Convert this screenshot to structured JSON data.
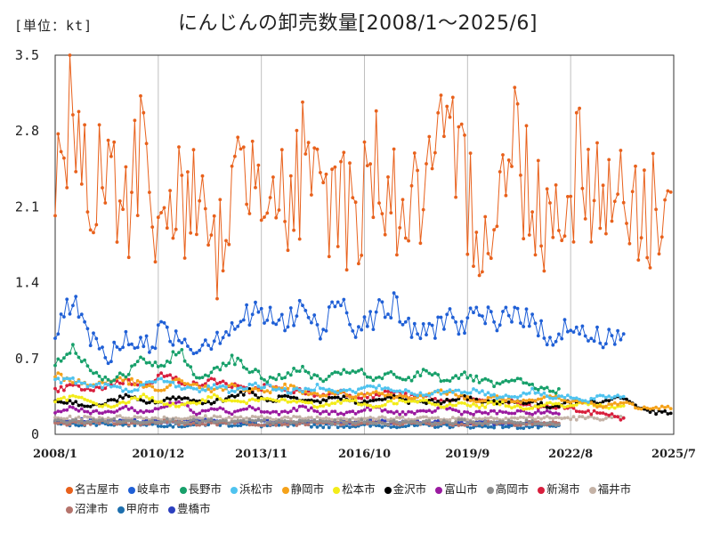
{
  "unit_label": "[単位：kt]",
  "colors": {
    "名古屋市": "#e8611c",
    "岐阜市": "#1f5fd6",
    "長野市": "#17a06a",
    "浜松市": "#4fc3ef",
    "静岡市": "#f5a21a",
    "松本市": "#f3ec1a",
    "金沢市": "#000000",
    "富山市": "#9a1aa0",
    "高岡市": "#8f8f8f",
    "新潟市": "#d81e3c",
    "福井市": "#c4b2a6",
    "沼津市": "#b5746c",
    "甲府市": "#1d6fae",
    "豊橋市": "#2b3fbf"
  },
  "chart_data": {
    "type": "line",
    "title": "にんじんの卸売数量[2008/1～2025/6]",
    "xlabel": "",
    "ylabel": "",
    "ylim": [
      0,
      3.5
    ],
    "yticks": [
      "0",
      "0.7",
      "1.4",
      "2.1",
      "2.8",
      "3.5"
    ],
    "xticks": [
      "2008/1",
      "2010/12",
      "2013/11",
      "2016/10",
      "2019/9",
      "2022/8",
      "2025/7"
    ],
    "grid": "vertical",
    "legend_position": "bottom",
    "x_range": [
      "2008/1",
      "2025/7"
    ],
    "series": [
      {
        "name": "名古屋市",
        "sample_every_months": 6,
        "end": "2025/6",
        "values": [
          2.6,
          2.8,
          2.1,
          2.4,
          2.0,
          2.9,
          1.7,
          2.3,
          2.1,
          1.6,
          2.2,
          2.5,
          2.7,
          2.0,
          2.4,
          2.1,
          2.3,
          1.9,
          2.6,
          2.2,
          2.0,
          2.3,
          2.5,
          2.4,
          1.9,
          2.1,
          2.7,
          2.2,
          2.0,
          2.3,
          2.6,
          2.1,
          2.4,
          1.9,
          2.2,
          2.0,
          1.8,
          1.6,
          2.2,
          1.5,
          1.3
        ]
      },
      {
        "name": "岐阜市",
        "sample_every_months": 6,
        "end": "2024/2",
        "values": [
          1.0,
          1.2,
          0.9,
          0.7,
          0.9,
          0.8,
          0.95,
          0.9,
          0.8,
          0.9,
          1.0,
          1.1,
          1.1,
          1.0,
          1.2,
          0.9,
          1.3,
          1.0,
          1.1,
          1.2,
          1.0,
          0.9,
          1.1,
          1.0,
          1.1,
          1.0,
          1.2,
          1.0,
          0.9,
          1.0,
          0.9,
          0.9,
          0.9
        ]
      },
      {
        "name": "長野市",
        "sample_every_months": 6,
        "end": "2022/4",
        "values": [
          0.65,
          0.8,
          0.6,
          0.5,
          0.55,
          0.7,
          0.6,
          0.8,
          0.5,
          0.6,
          0.7,
          0.6,
          0.5,
          0.55,
          0.6,
          0.5,
          0.55,
          0.6,
          0.5,
          0.55,
          0.5,
          0.6,
          0.5,
          0.55,
          0.5,
          0.45,
          0.5,
          0.45,
          0.4
        ]
      },
      {
        "name": "浜松市",
        "sample_every_months": 6,
        "end": "2024/2",
        "values": [
          0.5,
          0.5,
          0.45,
          0.45,
          0.4,
          0.45,
          0.5,
          0.45,
          0.4,
          0.45,
          0.4,
          0.45,
          0.45,
          0.4,
          0.4,
          0.45,
          0.4,
          0.4,
          0.45,
          0.4,
          0.4,
          0.35,
          0.4,
          0.4,
          0.4,
          0.35,
          0.35,
          0.4,
          0.35,
          0.35,
          0.3,
          0.35,
          0.35
        ]
      },
      {
        "name": "静岡市",
        "sample_every_months": 6,
        "end": "2025/6",
        "values": [
          0.55,
          0.5,
          0.45,
          0.5,
          0.5,
          0.45,
          0.4,
          0.5,
          0.45,
          0.4,
          0.45,
          0.4,
          0.4,
          0.45,
          0.4,
          0.35,
          0.4,
          0.35,
          0.4,
          0.35,
          0.35,
          0.35,
          0.4,
          0.35,
          0.3,
          0.35,
          0.3,
          0.3,
          0.35,
          0.3,
          0.3,
          0.25,
          0.3,
          0.25,
          0.25,
          0.25,
          0.2,
          0.25,
          0.25,
          0.2,
          0.25
        ]
      },
      {
        "name": "松本市",
        "sample_every_months": 6,
        "end": "2024/2",
        "values": [
          0.3,
          0.35,
          0.3,
          0.25,
          0.3,
          0.35,
          0.3,
          0.25,
          0.3,
          0.35,
          0.3,
          0.3,
          0.35,
          0.3,
          0.3,
          0.25,
          0.3,
          0.3,
          0.25,
          0.3,
          0.3,
          0.3,
          0.25,
          0.3,
          0.25,
          0.3,
          0.25,
          0.25,
          0.3,
          0.25,
          0.3,
          0.25,
          0.25
        ]
      },
      {
        "name": "金沢市",
        "sample_every_months": 6,
        "end": "2025/6",
        "values": [
          0.3,
          0.3,
          0.25,
          0.3,
          0.35,
          0.3,
          0.3,
          0.35,
          0.3,
          0.3,
          0.35,
          0.4,
          0.3,
          0.35,
          0.3,
          0.3,
          0.35,
          0.3,
          0.3,
          0.35,
          0.3,
          0.3,
          0.3,
          0.35,
          0.3,
          0.3,
          0.3,
          0.3,
          0.25,
          0.3,
          0.3,
          0.3,
          0.35,
          0.25,
          0.2,
          0.2,
          0.2,
          0.2,
          0.25,
          0.3,
          0.28
        ]
      },
      {
        "name": "富山市",
        "sample_every_months": 6,
        "end": "2022/4",
        "values": [
          0.2,
          0.25,
          0.2,
          0.2,
          0.25,
          0.2,
          0.25,
          0.3,
          0.2,
          0.25,
          0.2,
          0.25,
          0.2,
          0.2,
          0.25,
          0.2,
          0.2,
          0.2,
          0.25,
          0.2,
          0.2,
          0.2,
          0.25,
          0.2,
          0.2,
          0.2,
          0.2,
          0.2,
          0.2
        ]
      },
      {
        "name": "高岡市",
        "sample_every_months": 6,
        "end": "2022/4",
        "values": [
          0.12,
          0.12,
          0.12,
          0.13,
          0.12,
          0.12,
          0.13,
          0.12,
          0.12,
          0.12,
          0.11,
          0.12,
          0.12,
          0.11,
          0.12,
          0.12,
          0.11,
          0.12,
          0.11,
          0.11,
          0.12,
          0.11,
          0.11,
          0.12,
          0.11,
          0.11,
          0.11,
          0.11,
          0.1
        ]
      },
      {
        "name": "新潟市",
        "sample_every_months": 6,
        "end": "2024/2",
        "values": [
          0.4,
          0.45,
          0.4,
          0.45,
          0.5,
          0.45,
          0.55,
          0.5,
          0.45,
          0.5,
          0.45,
          0.4,
          0.45,
          0.4,
          0.4,
          0.35,
          0.4,
          0.35,
          0.35,
          0.4,
          0.35,
          0.35,
          0.3,
          0.35,
          0.3,
          0.3,
          0.3,
          0.25,
          0.25,
          0.25,
          0.2,
          0.2,
          0.15
        ]
      },
      {
        "name": "福井市",
        "sample_every_months": 6,
        "end": "2024/2",
        "values": [
          0.15,
          0.15,
          0.15,
          0.15,
          0.16,
          0.15,
          0.15,
          0.15,
          0.15,
          0.16,
          0.15,
          0.15,
          0.15,
          0.15,
          0.15,
          0.15,
          0.15,
          0.15,
          0.15,
          0.14,
          0.15,
          0.15,
          0.15,
          0.14,
          0.15,
          0.15,
          0.15,
          0.15,
          0.15,
          0.15,
          0.15,
          0.15,
          0.15
        ]
      },
      {
        "name": "沼津市",
        "sample_every_months": 6,
        "end": "2022/4",
        "values": [
          0.1,
          0.1,
          0.1,
          0.12,
          0.1,
          0.1,
          0.12,
          0.1,
          0.1,
          0.1,
          0.12,
          0.1,
          0.1,
          0.1,
          0.1,
          0.1,
          0.1,
          0.1,
          0.1,
          0.1,
          0.1,
          0.1,
          0.1,
          0.1,
          0.1,
          0.1,
          0.1,
          0.1,
          0.1
        ]
      },
      {
        "name": "甲府市",
        "sample_every_months": 6,
        "end": "2022/4",
        "values": [
          0.1,
          0.09,
          0.1,
          0.1,
          0.09,
          0.1,
          0.09,
          0.08,
          0.09,
          0.1,
          0.09,
          0.09,
          0.08,
          0.08,
          0.09,
          0.08,
          0.08,
          0.08,
          0.08,
          0.08,
          0.08,
          0.08,
          0.08,
          0.08,
          0.07,
          0.08,
          0.07,
          0.07,
          0.07
        ]
      },
      {
        "name": "豊橋市",
        "sample_every_months": 6,
        "end": "2022/4",
        "values": [
          0.12,
          0.12,
          0.13,
          0.12,
          0.13,
          0.12,
          0.12,
          0.12,
          0.13,
          0.12,
          0.11,
          0.12,
          0.12,
          0.11,
          0.12,
          0.12,
          0.11,
          0.11,
          0.12,
          0.11,
          0.11,
          0.11,
          0.11,
          0.1,
          0.11,
          0.1,
          0.1,
          0.1,
          0.1
        ]
      }
    ]
  }
}
